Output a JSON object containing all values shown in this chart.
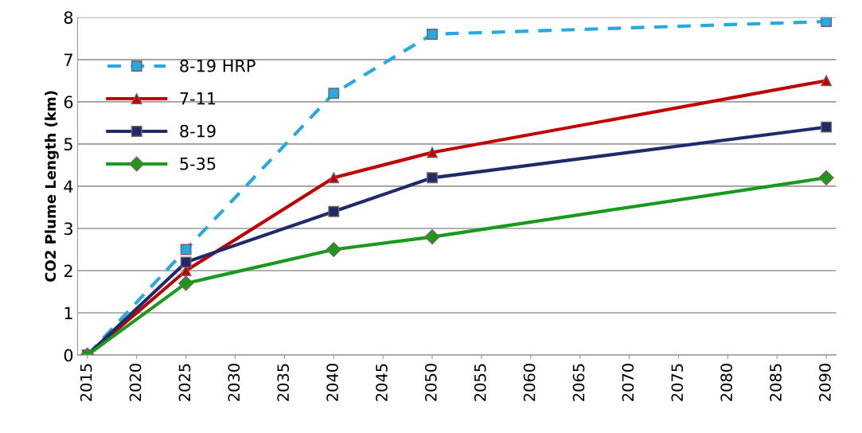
{
  "chart_data": {
    "type": "line",
    "ylabel": "CO2 Plume Length (km)",
    "x": [
      2015,
      2025,
      2040,
      2050,
      2090
    ],
    "series": [
      {
        "name": "8-19 HRP",
        "color": "#22aae2",
        "marker": "square",
        "line_style": "dashed",
        "values": [
          0,
          2.5,
          6.2,
          7.6,
          7.9
        ]
      },
      {
        "name": "7-11",
        "color": "#c00000",
        "marker": "triangle",
        "line_style": "solid",
        "values": [
          0,
          2.0,
          4.2,
          4.8,
          6.5
        ]
      },
      {
        "name": "8-19",
        "color": "#1f2a6b",
        "marker": "square",
        "line_style": "solid",
        "values": [
          0,
          2.2,
          3.4,
          4.2,
          5.4
        ]
      },
      {
        "name": "5-35",
        "color": "#1a9a1a",
        "marker": "diamond",
        "line_style": "solid",
        "values": [
          0,
          1.7,
          2.5,
          2.8,
          4.2
        ]
      }
    ],
    "xlim": [
      2014,
      2091
    ],
    "xticks": [
      2015,
      2020,
      2025,
      2030,
      2035,
      2040,
      2045,
      2050,
      2055,
      2060,
      2065,
      2070,
      2075,
      2080,
      2085,
      2090
    ],
    "ylim": [
      0,
      8
    ],
    "yticks": [
      0,
      1,
      2,
      3,
      4,
      5,
      6,
      7,
      8
    ],
    "grid": "y",
    "legend": "top left"
  }
}
